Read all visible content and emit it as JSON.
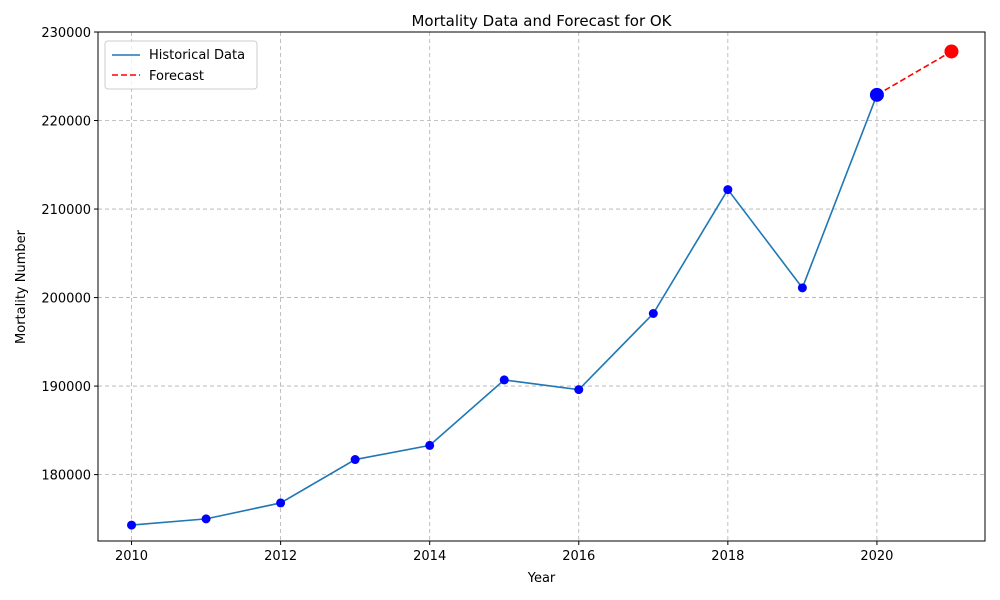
{
  "chart_data": {
    "type": "line",
    "title": "Mortality Data and Forecast for OK",
    "xlabel": "Year",
    "ylabel": "Mortality Number",
    "xlim": [
      2009.55,
      2021.45
    ],
    "ylim": [
      172500,
      230000
    ],
    "xticks": [
      2010,
      2012,
      2014,
      2016,
      2018,
      2020
    ],
    "yticks": [
      180000,
      190000,
      200000,
      210000,
      220000,
      230000
    ],
    "grid": true,
    "legend_position": "top-left",
    "series": [
      {
        "name": "Historical Data",
        "style": "solid",
        "color": "#1f77b4",
        "marker_color": "#0000ff",
        "x": [
          2010,
          2011,
          2012,
          2013,
          2014,
          2015,
          2016,
          2017,
          2018,
          2019,
          2020
        ],
        "values": [
          174300,
          175000,
          176800,
          181700,
          183300,
          190700,
          189600,
          198200,
          212200,
          201100,
          222900
        ]
      },
      {
        "name": "Forecast",
        "style": "dashed",
        "color": "#ff0000",
        "marker_color": "#ff0000",
        "x": [
          2020,
          2021
        ],
        "values": [
          222900,
          227800
        ]
      }
    ],
    "highlight_points": [
      {
        "x": 2020,
        "y": 222900,
        "color": "#0000ff"
      },
      {
        "x": 2021,
        "y": 227800,
        "color": "#ff0000"
      }
    ]
  }
}
